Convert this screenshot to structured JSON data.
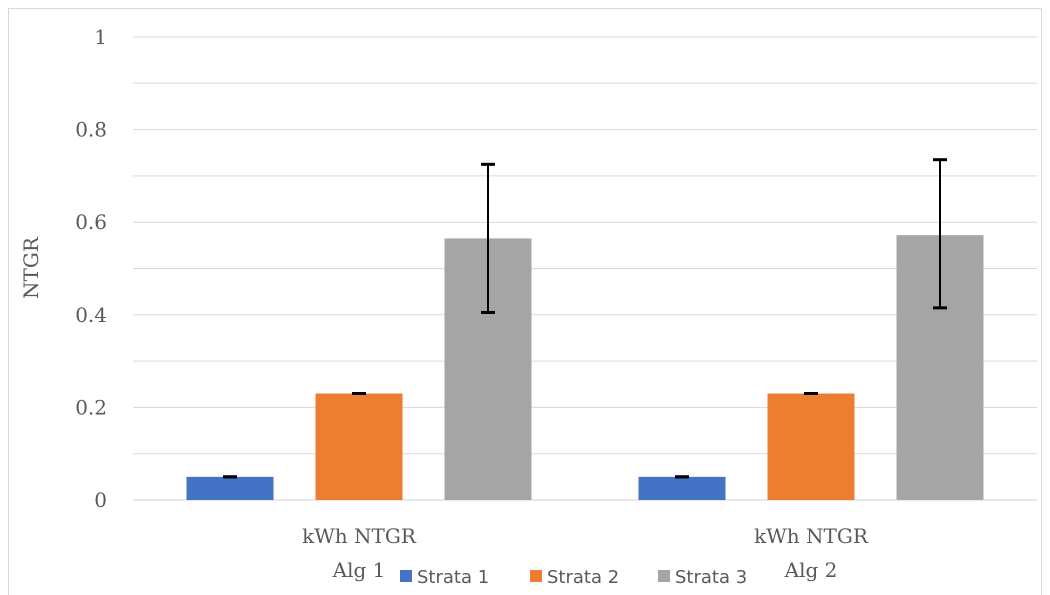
{
  "chart_data": {
    "type": "bar",
    "ylabel": "NTGR",
    "ylim": [
      0,
      1
    ],
    "yticks": [
      0,
      0.2,
      0.4,
      0.6,
      0.8,
      1
    ],
    "ytick_labels": [
      "0",
      "0.2",
      "0.4",
      "0.6",
      "0.8",
      "1"
    ],
    "grid": true,
    "legend_position": "bottom",
    "categories": [
      [
        "kWh NTGR",
        "Alg 1"
      ],
      [
        "kWh NTGR",
        "Alg 2"
      ]
    ],
    "series": [
      {
        "name": "Strata 1",
        "color": "#4472C4",
        "values": [
          0.05,
          0.05
        ],
        "err_low": [
          0.05,
          0.05
        ],
        "err_high": [
          0.05,
          0.05
        ]
      },
      {
        "name": "Strata 2",
        "color": "#ED7D31",
        "values": [
          0.23,
          0.23
        ],
        "err_low": [
          0.23,
          0.23
        ],
        "err_high": [
          0.23,
          0.23
        ]
      },
      {
        "name": "Strata 3",
        "color": "#A5A5A5",
        "values": [
          0.565,
          0.572
        ],
        "err_low": [
          0.405,
          0.415
        ],
        "err_high": [
          0.725,
          0.735
        ]
      }
    ]
  }
}
